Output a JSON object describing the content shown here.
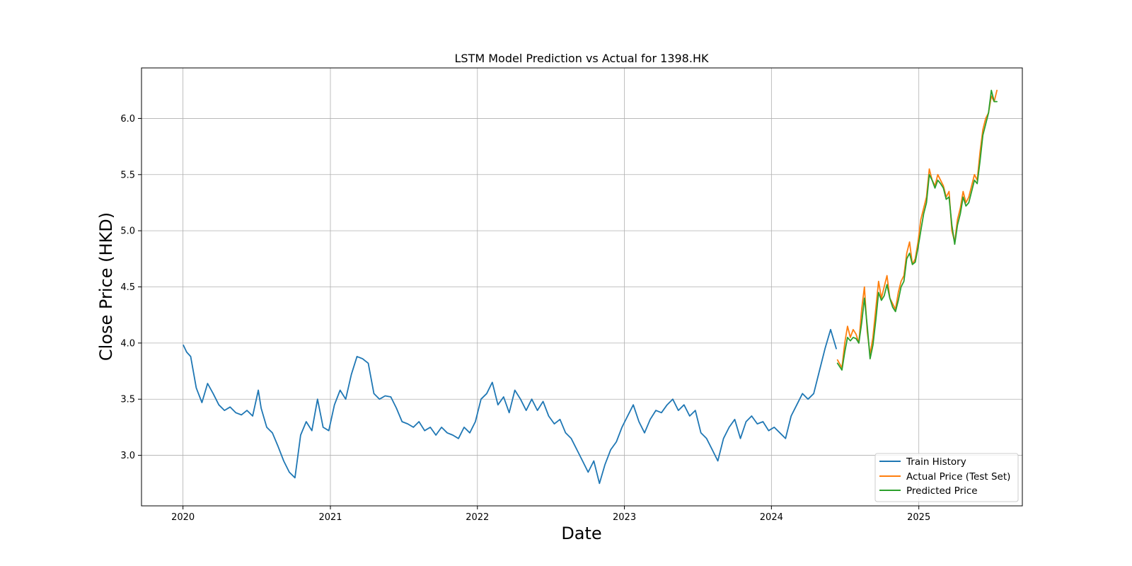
{
  "chart_data": {
    "type": "line",
    "title": "LSTM Model Prediction vs Actual for 1398.HK",
    "xlabel": "Date",
    "ylabel": "Close Price (HKD)",
    "xlim": [
      "2019-09-20",
      "2025-09-15"
    ],
    "ylim": [
      2.55,
      6.45
    ],
    "xticks": [
      {
        "date": "2020-01-01",
        "label": "2020"
      },
      {
        "date": "2021-01-01",
        "label": "2021"
      },
      {
        "date": "2022-01-01",
        "label": "2022"
      },
      {
        "date": "2023-01-01",
        "label": "2023"
      },
      {
        "date": "2024-01-01",
        "label": "2024"
      },
      {
        "date": "2025-01-01",
        "label": "2025"
      }
    ],
    "yticks": [
      3.0,
      3.5,
      4.0,
      4.5,
      5.0,
      5.5,
      6.0
    ],
    "ytick_labels": [
      "3.0",
      "3.5",
      "4.0",
      "4.5",
      "5.0",
      "5.5",
      "6.0"
    ],
    "grid": true,
    "legend_position": "lower-right",
    "series": [
      {
        "name": "Train History",
        "color": "#1f77b4",
        "x": [
          "2020-01-02",
          "2020-01-10",
          "2020-01-20",
          "2020-02-03",
          "2020-02-17",
          "2020-03-02",
          "2020-03-16",
          "2020-03-30",
          "2020-04-13",
          "2020-04-27",
          "2020-05-11",
          "2020-05-25",
          "2020-06-08",
          "2020-06-22",
          "2020-07-06",
          "2020-07-13",
          "2020-07-27",
          "2020-08-10",
          "2020-08-24",
          "2020-09-07",
          "2020-09-21",
          "2020-10-05",
          "2020-10-19",
          "2020-11-02",
          "2020-11-16",
          "2020-11-30",
          "2020-12-14",
          "2020-12-28",
          "2021-01-11",
          "2021-01-25",
          "2021-02-08",
          "2021-02-22",
          "2021-03-08",
          "2021-03-22",
          "2021-04-05",
          "2021-04-19",
          "2021-05-03",
          "2021-05-17",
          "2021-05-31",
          "2021-06-14",
          "2021-06-28",
          "2021-07-12",
          "2021-07-26",
          "2021-08-09",
          "2021-08-23",
          "2021-09-06",
          "2021-09-20",
          "2021-10-04",
          "2021-10-18",
          "2021-11-01",
          "2021-11-15",
          "2021-11-29",
          "2021-12-13",
          "2021-12-27",
          "2022-01-10",
          "2022-01-24",
          "2022-02-07",
          "2022-02-21",
          "2022-03-07",
          "2022-03-21",
          "2022-04-04",
          "2022-04-18",
          "2022-05-02",
          "2022-05-16",
          "2022-05-30",
          "2022-06-13",
          "2022-06-27",
          "2022-07-11",
          "2022-07-25",
          "2022-08-08",
          "2022-08-22",
          "2022-09-05",
          "2022-09-19",
          "2022-10-03",
          "2022-10-17",
          "2022-10-31",
          "2022-11-14",
          "2022-11-28",
          "2022-12-12",
          "2022-12-26",
          "2023-01-09",
          "2023-01-23",
          "2023-02-06",
          "2023-02-20",
          "2023-03-06",
          "2023-03-20",
          "2023-04-03",
          "2023-04-17",
          "2023-05-01",
          "2023-05-15",
          "2023-05-29",
          "2023-06-12",
          "2023-06-26",
          "2023-07-10",
          "2023-07-24",
          "2023-08-07",
          "2023-08-21",
          "2023-09-04",
          "2023-09-18",
          "2023-10-02",
          "2023-10-16",
          "2023-10-30",
          "2023-11-13",
          "2023-11-27",
          "2023-12-11",
          "2023-12-25",
          "2024-01-08",
          "2024-01-22",
          "2024-02-05",
          "2024-02-19",
          "2024-03-04",
          "2024-03-18",
          "2024-04-01",
          "2024-04-15",
          "2024-04-29",
          "2024-05-13",
          "2024-05-27",
          "2024-06-10"
        ],
        "y": [
          3.98,
          3.92,
          3.88,
          3.6,
          3.47,
          3.64,
          3.55,
          3.45,
          3.4,
          3.43,
          3.38,
          3.36,
          3.4,
          3.35,
          3.58,
          3.42,
          3.25,
          3.2,
          3.08,
          2.95,
          2.85,
          2.8,
          3.18,
          3.3,
          3.22,
          3.5,
          3.25,
          3.22,
          3.45,
          3.58,
          3.5,
          3.72,
          3.88,
          3.86,
          3.82,
          3.55,
          3.5,
          3.53,
          3.52,
          3.42,
          3.3,
          3.28,
          3.25,
          3.3,
          3.22,
          3.25,
          3.18,
          3.25,
          3.2,
          3.18,
          3.15,
          3.25,
          3.2,
          3.3,
          3.5,
          3.55,
          3.65,
          3.45,
          3.52,
          3.38,
          3.58,
          3.5,
          3.4,
          3.5,
          3.4,
          3.48,
          3.35,
          3.28,
          3.32,
          3.2,
          3.15,
          3.05,
          2.95,
          2.85,
          2.95,
          2.75,
          2.92,
          3.05,
          3.12,
          3.25,
          3.35,
          3.45,
          3.3,
          3.2,
          3.32,
          3.4,
          3.38,
          3.45,
          3.5,
          3.4,
          3.45,
          3.35,
          3.4,
          3.2,
          3.15,
          3.05,
          2.95,
          3.15,
          3.25,
          3.32,
          3.15,
          3.3,
          3.35,
          3.28,
          3.3,
          3.22,
          3.25,
          3.2,
          3.15,
          3.35,
          3.45,
          3.55,
          3.5,
          3.55,
          3.75,
          3.95,
          4.12,
          3.95
        ]
      },
      {
        "name": "Actual Price (Test Set)",
        "color": "#ff7f0e",
        "x": [
          "2024-06-13",
          "2024-06-24",
          "2024-07-01",
          "2024-07-08",
          "2024-07-15",
          "2024-07-22",
          "2024-07-29",
          "2024-08-05",
          "2024-08-12",
          "2024-08-19",
          "2024-08-26",
          "2024-09-02",
          "2024-09-09",
          "2024-09-16",
          "2024-09-23",
          "2024-09-30",
          "2024-10-07",
          "2024-10-14",
          "2024-10-21",
          "2024-10-28",
          "2024-11-04",
          "2024-11-11",
          "2024-11-18",
          "2024-11-25",
          "2024-12-02",
          "2024-12-09",
          "2024-12-16",
          "2024-12-23",
          "2024-12-30",
          "2025-01-06",
          "2025-01-13",
          "2025-01-20",
          "2025-01-27",
          "2025-02-03",
          "2025-02-10",
          "2025-02-17",
          "2025-02-24",
          "2025-03-03",
          "2025-03-10",
          "2025-03-17",
          "2025-03-24",
          "2025-03-31",
          "2025-04-07",
          "2025-04-14",
          "2025-04-21",
          "2025-04-28",
          "2025-05-05",
          "2025-05-12",
          "2025-05-19",
          "2025-05-26",
          "2025-06-02",
          "2025-06-09",
          "2025-06-16",
          "2025-06-23",
          "2025-06-30",
          "2025-07-07",
          "2025-07-14"
        ],
        "y": [
          3.85,
          3.78,
          4.0,
          4.15,
          4.05,
          4.12,
          4.08,
          4.0,
          4.3,
          4.5,
          4.1,
          3.9,
          4.05,
          4.3,
          4.55,
          4.4,
          4.5,
          4.6,
          4.4,
          4.35,
          4.3,
          4.45,
          4.55,
          4.6,
          4.8,
          4.9,
          4.7,
          4.75,
          4.9,
          5.1,
          5.2,
          5.3,
          5.55,
          5.45,
          5.4,
          5.5,
          5.45,
          5.4,
          5.3,
          5.35,
          5.0,
          4.9,
          5.1,
          5.2,
          5.35,
          5.25,
          5.3,
          5.4,
          5.5,
          5.45,
          5.7,
          5.9,
          6.0,
          6.05,
          6.2,
          6.15,
          6.25
        ]
      },
      {
        "name": "Predicted Price",
        "color": "#2ca02c",
        "x": [
          "2024-06-13",
          "2024-06-24",
          "2024-07-01",
          "2024-07-08",
          "2024-07-15",
          "2024-07-22",
          "2024-07-29",
          "2024-08-05",
          "2024-08-12",
          "2024-08-19",
          "2024-08-26",
          "2024-09-02",
          "2024-09-09",
          "2024-09-16",
          "2024-09-23",
          "2024-09-30",
          "2024-10-07",
          "2024-10-14",
          "2024-10-21",
          "2024-10-28",
          "2024-11-04",
          "2024-11-11",
          "2024-11-18",
          "2024-11-25",
          "2024-12-02",
          "2024-12-09",
          "2024-12-16",
          "2024-12-23",
          "2024-12-30",
          "2025-01-06",
          "2025-01-13",
          "2025-01-20",
          "2025-01-27",
          "2025-02-03",
          "2025-02-10",
          "2025-02-17",
          "2025-02-24",
          "2025-03-03",
          "2025-03-10",
          "2025-03-17",
          "2025-03-24",
          "2025-03-31",
          "2025-04-07",
          "2025-04-14",
          "2025-04-21",
          "2025-04-28",
          "2025-05-05",
          "2025-05-12",
          "2025-05-19",
          "2025-05-26",
          "2025-06-02",
          "2025-06-09",
          "2025-06-16",
          "2025-06-23",
          "2025-06-30",
          "2025-07-07",
          "2025-07-14"
        ],
        "y": [
          3.82,
          3.76,
          3.92,
          4.05,
          4.02,
          4.05,
          4.04,
          4.0,
          4.18,
          4.4,
          4.15,
          3.86,
          3.98,
          4.2,
          4.45,
          4.38,
          4.42,
          4.52,
          4.4,
          4.32,
          4.28,
          4.38,
          4.5,
          4.55,
          4.75,
          4.8,
          4.7,
          4.72,
          4.85,
          5.0,
          5.15,
          5.25,
          5.5,
          5.45,
          5.38,
          5.45,
          5.42,
          5.38,
          5.28,
          5.3,
          5.05,
          4.88,
          5.05,
          5.15,
          5.3,
          5.22,
          5.25,
          5.35,
          5.45,
          5.42,
          5.62,
          5.85,
          5.95,
          6.05,
          6.25,
          6.15,
          6.15
        ]
      }
    ]
  }
}
